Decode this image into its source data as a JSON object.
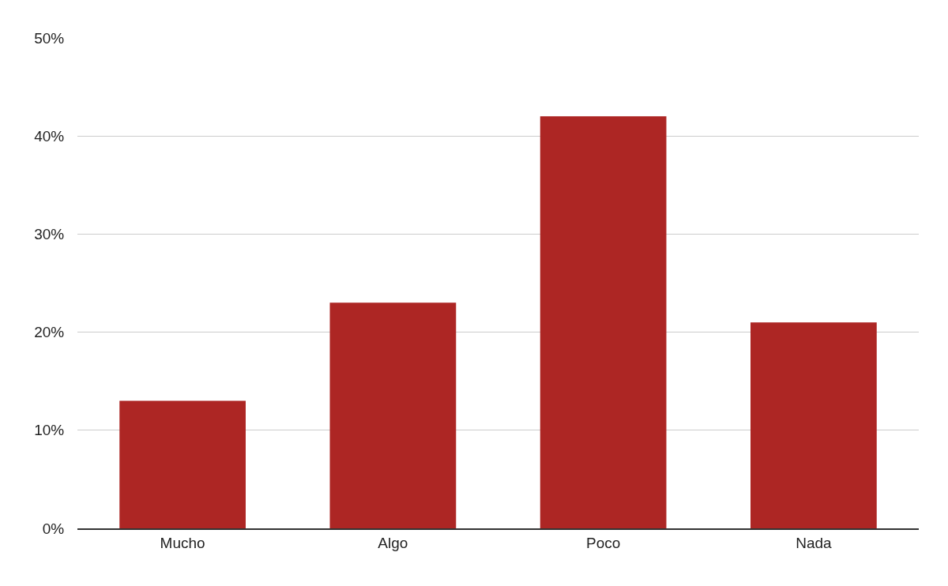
{
  "chart_data": {
    "type": "bar",
    "categories": [
      "Mucho",
      "Algo",
      "Poco",
      "Nada"
    ],
    "values": [
      13,
      23,
      42,
      21
    ],
    "color": "#ad2624",
    "ylim": [
      0,
      50
    ],
    "yticks": [
      {
        "value": 0,
        "label": "0%"
      },
      {
        "value": 10,
        "label": "10%"
      },
      {
        "value": 20,
        "label": "20%"
      },
      {
        "value": 30,
        "label": "30%"
      },
      {
        "value": 40,
        "label": "40%"
      },
      {
        "value": 50,
        "label": "50%"
      }
    ],
    "grid": "y"
  }
}
